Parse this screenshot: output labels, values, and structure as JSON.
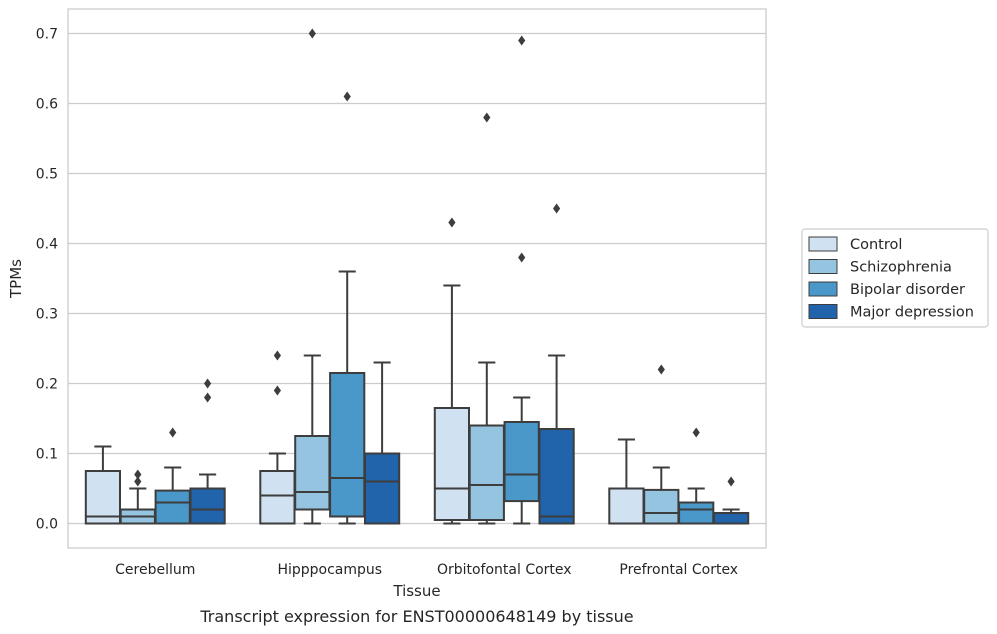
{
  "chart_data": {
    "type": "box",
    "xlabel": "Tissue",
    "ylabel": "TPMs",
    "caption": "Transcript expression for ENST00000648149 by tissue",
    "ylim": [
      -0.035,
      0.735
    ],
    "yticks": [
      "0.0",
      "0.1",
      "0.2",
      "0.3",
      "0.4",
      "0.5",
      "0.6",
      "0.7"
    ],
    "grid": "horizontal",
    "legend_position": "right",
    "categories": [
      "Cerebellum",
      "Hipppocampus",
      "Orbitofontal Cortex",
      "Prefrontal Cortex"
    ],
    "series": [
      {
        "name": "Control",
        "color": "#d0e1f2",
        "boxes": [
          {
            "min": 0.0,
            "q1": 0.0,
            "median": 0.01,
            "q3": 0.075,
            "max": 0.11,
            "outliers": []
          },
          {
            "min": 0.0,
            "q1": 0.0,
            "median": 0.04,
            "q3": 0.075,
            "max": 0.1,
            "outliers": [
              0.19,
              0.24
            ]
          },
          {
            "min": 0.0,
            "q1": 0.005,
            "median": 0.05,
            "q3": 0.165,
            "max": 0.34,
            "outliers": [
              0.43
            ]
          },
          {
            "min": 0.0,
            "q1": 0.0,
            "median": 0.0,
            "q3": 0.05,
            "max": 0.12,
            "outliers": []
          }
        ]
      },
      {
        "name": "Schizophrenia",
        "color": "#94c4df",
        "boxes": [
          {
            "min": 0.0,
            "q1": 0.0,
            "median": 0.01,
            "q3": 0.02,
            "max": 0.05,
            "outliers": [
              0.06,
              0.07
            ]
          },
          {
            "min": 0.0,
            "q1": 0.02,
            "median": 0.045,
            "q3": 0.125,
            "max": 0.24,
            "outliers": [
              0.7
            ]
          },
          {
            "min": 0.0,
            "q1": 0.005,
            "median": 0.055,
            "q3": 0.14,
            "max": 0.23,
            "outliers": [
              0.58
            ]
          },
          {
            "min": 0.0,
            "q1": 0.0,
            "median": 0.015,
            "q3": 0.048,
            "max": 0.08,
            "outliers": [
              0.22
            ]
          }
        ]
      },
      {
        "name": "Bipolar disorder",
        "color": "#4a98c9",
        "boxes": [
          {
            "min": 0.0,
            "q1": 0.0,
            "median": 0.03,
            "q3": 0.047,
            "max": 0.08,
            "outliers": [
              0.13
            ]
          },
          {
            "min": 0.0,
            "q1": 0.01,
            "median": 0.065,
            "q3": 0.215,
            "max": 0.36,
            "outliers": [
              0.61
            ]
          },
          {
            "min": 0.0,
            "q1": 0.032,
            "median": 0.07,
            "q3": 0.145,
            "max": 0.18,
            "outliers": [
              0.38,
              0.69
            ]
          },
          {
            "min": 0.0,
            "q1": 0.0,
            "median": 0.02,
            "q3": 0.03,
            "max": 0.05,
            "outliers": [
              0.13
            ]
          }
        ]
      },
      {
        "name": "Major depression",
        "color": "#2164ab",
        "boxes": [
          {
            "min": 0.0,
            "q1": 0.0,
            "median": 0.02,
            "q3": 0.05,
            "max": 0.07,
            "outliers": [
              0.18,
              0.2
            ]
          },
          {
            "min": 0.0,
            "q1": 0.0,
            "median": 0.06,
            "q3": 0.1,
            "max": 0.23,
            "outliers": []
          },
          {
            "min": 0.0,
            "q1": 0.0,
            "median": 0.01,
            "q3": 0.135,
            "max": 0.24,
            "outliers": [
              0.45
            ]
          },
          {
            "min": 0.0,
            "q1": 0.0,
            "median": 0.0,
            "q3": 0.015,
            "max": 0.02,
            "outliers": [
              0.06
            ]
          }
        ]
      }
    ]
  }
}
